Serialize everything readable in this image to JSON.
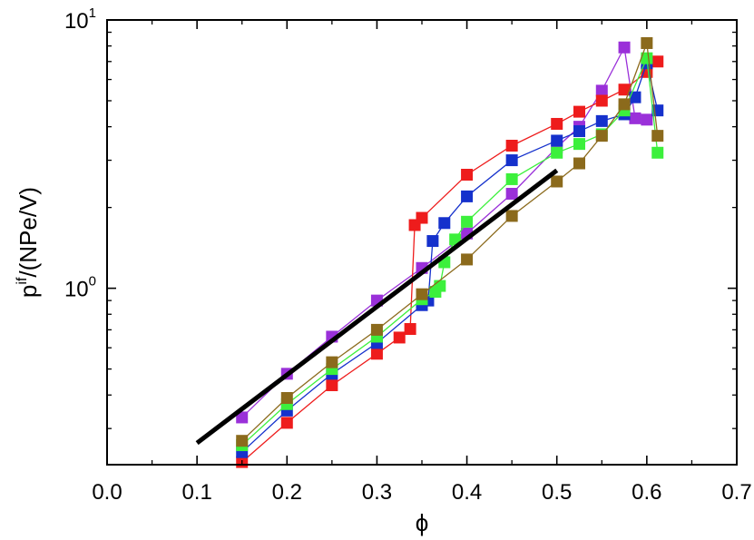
{
  "chart_data": {
    "type": "scatter",
    "title": "",
    "xlabel": "ϕ",
    "ylabel": {
      "base": "p",
      "superscript": "if",
      "rest": "/(NPe/V)"
    },
    "xlim": [
      0.0,
      0.7
    ],
    "ylim": [
      0.22,
      10
    ],
    "yscale": "log",
    "grid": false,
    "legend": "none",
    "x_ticks": [
      "0.0",
      "0.1",
      "0.2",
      "0.3",
      "0.4",
      "0.5",
      "0.6",
      "0.7"
    ],
    "y_ticks": [
      {
        "value": 1,
        "base": "10",
        "exponent": "0"
      },
      {
        "value": 10,
        "base": "10",
        "exponent": "1"
      }
    ],
    "reference_line": {
      "color": "#000000",
      "x": [
        0.1,
        0.5
      ],
      "y": [
        0.265,
        2.75
      ]
    },
    "series": [
      {
        "color": "#9a30d9",
        "x": [
          0.15,
          0.2,
          0.25,
          0.3,
          0.35,
          0.4,
          0.45,
          0.5,
          0.525,
          0.55,
          0.575,
          0.587,
          0.6
        ],
        "y": [
          0.33,
          0.48,
          0.66,
          0.9,
          1.19,
          1.6,
          2.25,
          3.35,
          4.0,
          5.45,
          7.9,
          4.3,
          4.25
        ]
      },
      {
        "color": "#ee1c1c",
        "x": [
          0.15,
          0.2,
          0.25,
          0.3,
          0.325,
          0.337,
          0.342,
          0.35,
          0.4,
          0.45,
          0.5,
          0.525,
          0.55,
          0.575,
          0.6,
          0.612
        ],
        "y": [
          0.225,
          0.315,
          0.435,
          0.57,
          0.655,
          0.705,
          1.72,
          1.83,
          2.65,
          3.4,
          4.1,
          4.55,
          5.0,
          5.5,
          6.4,
          7.0
        ]
      },
      {
        "color": "#1531cc",
        "x": [
          0.15,
          0.2,
          0.25,
          0.3,
          0.35,
          0.357,
          0.362,
          0.375,
          0.4,
          0.45,
          0.5,
          0.525,
          0.55,
          0.575,
          0.587,
          0.6,
          0.612
        ],
        "y": [
          0.245,
          0.35,
          0.48,
          0.625,
          0.865,
          0.9,
          1.5,
          1.75,
          2.2,
          3.0,
          3.55,
          3.85,
          4.2,
          4.45,
          5.15,
          6.9,
          4.6
        ]
      },
      {
        "color": "#3cf03c",
        "x": [
          0.15,
          0.2,
          0.25,
          0.3,
          0.35,
          0.365,
          0.37,
          0.375,
          0.387,
          0.4,
          0.45,
          0.5,
          0.525,
          0.55,
          0.575,
          0.6,
          0.612
        ],
        "y": [
          0.26,
          0.37,
          0.5,
          0.66,
          0.91,
          0.97,
          1.02,
          1.25,
          1.52,
          1.77,
          2.55,
          3.2,
          3.45,
          3.75,
          4.6,
          7.2,
          3.2
        ]
      },
      {
        "color": "#8b6a1c",
        "x": [
          0.15,
          0.2,
          0.25,
          0.3,
          0.35,
          0.4,
          0.45,
          0.5,
          0.525,
          0.55,
          0.575,
          0.6,
          0.612
        ],
        "y": [
          0.27,
          0.39,
          0.53,
          0.7,
          0.95,
          1.28,
          1.86,
          2.5,
          2.92,
          3.7,
          4.85,
          8.2,
          3.7
        ]
      }
    ]
  }
}
